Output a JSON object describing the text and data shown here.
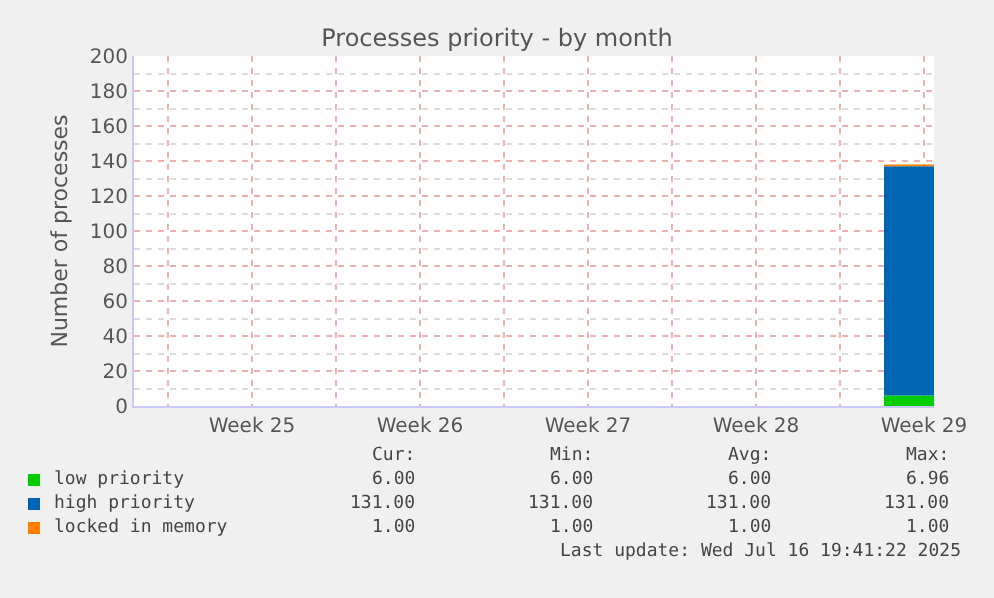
{
  "chart_data": {
    "type": "area",
    "stacked": true,
    "title": "Processes priority - by month",
    "ylabel": "Number of processes",
    "xlim": [
      "2025-06-14T14:00",
      "2025-07-17T22:00"
    ],
    "xticks": [
      {
        "value": "2025-06-16",
        "label": null
      },
      {
        "value": "2025-06-19T12:00",
        "label": "Week 25"
      },
      {
        "value": "2025-06-23",
        "label": null
      },
      {
        "value": "2025-06-26T12:00",
        "label": "Week 26"
      },
      {
        "value": "2025-06-30",
        "label": null
      },
      {
        "value": "2025-07-03T12:00",
        "label": "Week 27"
      },
      {
        "value": "2025-07-07",
        "label": null
      },
      {
        "value": "2025-07-10T12:00",
        "label": "Week 28"
      },
      {
        "value": "2025-07-14",
        "label": null
      },
      {
        "value": "2025-07-17T12:00",
        "label": "Week 29"
      }
    ],
    "ylim": [
      0,
      200
    ],
    "yticks": [
      0,
      20,
      40,
      60,
      80,
      100,
      120,
      140,
      160,
      180,
      200
    ],
    "grid": true,
    "legend": "bottom left",
    "series": [
      {
        "name": "low priority",
        "color": "#00cc00",
        "x": [
          "2025-07-15T20:00",
          "2025-07-17T22:00"
        ],
        "values": [
          6,
          6
        ]
      },
      {
        "name": "high priority",
        "color": "#0066b3",
        "x": [
          "2025-07-15T20:00",
          "2025-07-17T22:00"
        ],
        "values": [
          131,
          131
        ]
      },
      {
        "name": "locked in memory",
        "color": "#ff8000",
        "x": [
          "2025-07-15T20:00",
          "2025-07-17T22:00"
        ],
        "values": [
          1,
          1
        ]
      }
    ],
    "annotations": [
      "Cur:",
      "Min:",
      "Avg:",
      "Max:",
      "6.00",
      "6.00",
      "6.00",
      "6.96",
      "131.00",
      "131.00",
      "131.00",
      "131.00",
      "1.00",
      "1.00",
      "1.00",
      "1.00",
      "Last update: Wed Jul 16 19:41:22 2025"
    ]
  }
}
